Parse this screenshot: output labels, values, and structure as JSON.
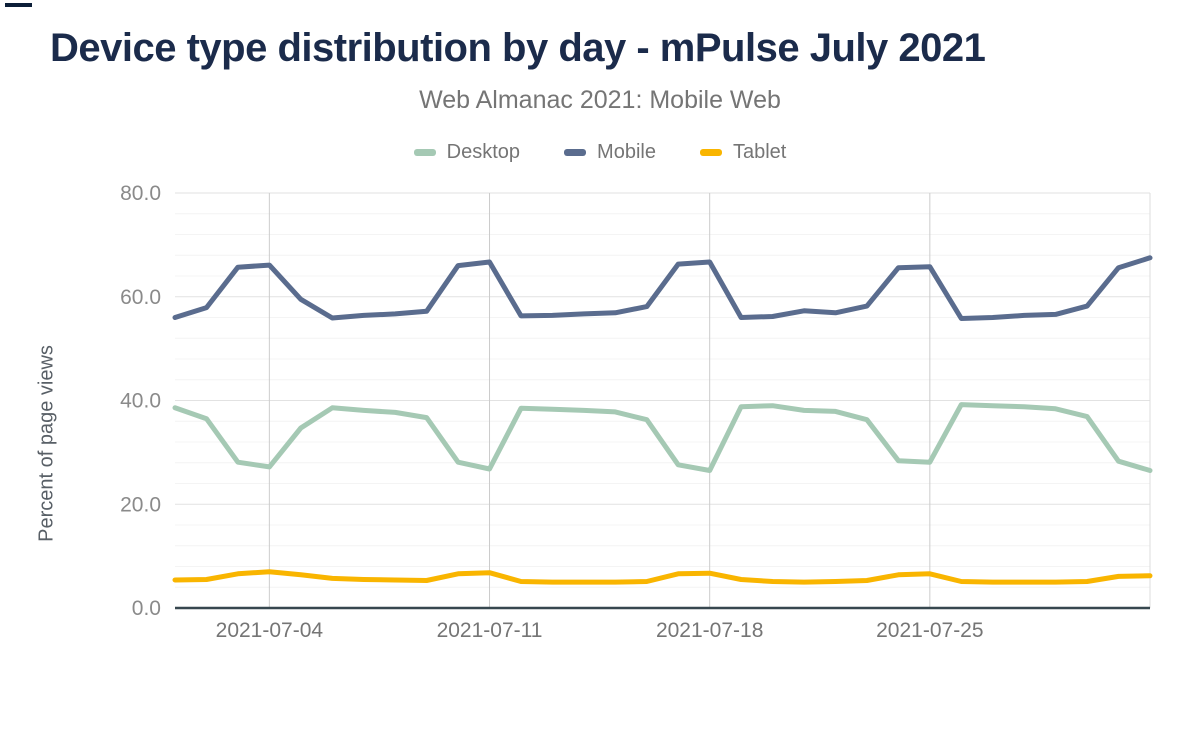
{
  "theme": {
    "title_color": "#1b2b4b",
    "muted_color": "#757575",
    "axis_text_color": "#8a8a8a",
    "ylabel_color": "#585f66",
    "axis_line_color": "#37474f",
    "grid_major_color": "#e2e2e2",
    "grid_minor_color": "#f4f4f4",
    "grid_vertical_color": "#cccccc",
    "plot_right_border_color": "#dddddd"
  },
  "chart_data": {
    "type": "line",
    "title": "Device type distribution by day - mPulse July 2021",
    "subtitle": "Web Almanac 2021: Mobile Web",
    "ylabel": "Percent of page views",
    "xlabel": "",
    "ylim": [
      0,
      80
    ],
    "ytick_values": [
      0,
      20,
      40,
      60,
      80
    ],
    "ytick_labels": [
      "0.0",
      "20.0",
      "40.0",
      "60.0",
      "80.0"
    ],
    "minor_grid_step": 4,
    "grid": true,
    "legend_position": "top",
    "x": [
      "2021-07-01",
      "2021-07-02",
      "2021-07-03",
      "2021-07-04",
      "2021-07-05",
      "2021-07-06",
      "2021-07-07",
      "2021-07-08",
      "2021-07-09",
      "2021-07-10",
      "2021-07-11",
      "2021-07-12",
      "2021-07-13",
      "2021-07-14",
      "2021-07-15",
      "2021-07-16",
      "2021-07-17",
      "2021-07-18",
      "2021-07-19",
      "2021-07-20",
      "2021-07-21",
      "2021-07-22",
      "2021-07-23",
      "2021-07-24",
      "2021-07-25",
      "2021-07-26",
      "2021-07-27",
      "2021-07-28",
      "2021-07-29",
      "2021-07-30",
      "2021-07-31",
      "2021-08-01"
    ],
    "xticks": [
      "2021-07-04",
      "2021-07-11",
      "2021-07-18",
      "2021-07-25"
    ],
    "series": [
      {
        "name": "Desktop",
        "color": "#a5c9b4",
        "values": [
          38.6,
          36.5,
          28.1,
          27.2,
          34.7,
          38.6,
          38.1,
          37.7,
          36.7,
          28.1,
          26.8,
          38.5,
          38.3,
          38.1,
          37.8,
          36.3,
          27.6,
          26.5,
          38.8,
          39.0,
          38.1,
          37.9,
          36.3,
          28.4,
          28.1,
          39.2,
          39.0,
          38.8,
          38.4,
          36.9,
          28.3,
          26.5
        ]
      },
      {
        "name": "Mobile",
        "color": "#5a6c8e",
        "values": [
          56.0,
          57.9,
          65.7,
          66.1,
          59.5,
          55.9,
          56.4,
          56.7,
          57.2,
          66.0,
          66.7,
          56.3,
          56.4,
          56.7,
          56.9,
          58.1,
          66.3,
          66.7,
          56.0,
          56.2,
          57.3,
          56.9,
          58.2,
          65.6,
          65.8,
          55.8,
          56.0,
          56.4,
          56.6,
          58.2,
          65.6,
          67.5
        ]
      },
      {
        "name": "Tablet",
        "color": "#f9b500",
        "values": [
          5.4,
          5.5,
          6.6,
          7.0,
          6.4,
          5.7,
          5.5,
          5.4,
          5.3,
          6.6,
          6.8,
          5.1,
          5.0,
          5.0,
          5.0,
          5.1,
          6.6,
          6.7,
          5.5,
          5.1,
          5.0,
          5.1,
          5.3,
          6.4,
          6.6,
          5.1,
          5.0,
          5.0,
          5.0,
          5.1,
          6.1,
          6.2
        ]
      }
    ]
  }
}
